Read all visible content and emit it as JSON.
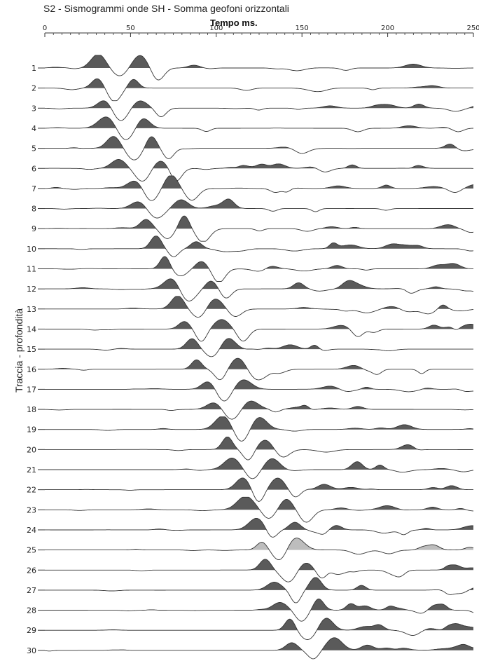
{
  "chart_data": {
    "type": "line",
    "title": "S2 - Sismogrammi onde SH - Somma geofoni orizzontali",
    "xlabel": "Tempo ms.",
    "ylabel": "Traccia - profondità",
    "xlim": [
      0,
      250
    ],
    "x_ticks": [
      0,
      50,
      100,
      150,
      200,
      250
    ],
    "x_tick_labels": [
      "0",
      "50",
      "100",
      "150",
      "200",
      "250"
    ],
    "trace_labels": [
      "1",
      "2",
      "3",
      "4",
      "5",
      "6",
      "7",
      "8",
      "9",
      "10",
      "11",
      "12",
      "13",
      "14",
      "15",
      "16",
      "17",
      "18",
      "19",
      "20",
      "21",
      "22",
      "23",
      "24",
      "25",
      "26",
      "27",
      "28",
      "29",
      "30"
    ],
    "first_arrival_ms": [
      26,
      24,
      27,
      30,
      35,
      39,
      46,
      50,
      55,
      59,
      64,
      68,
      72,
      76,
      80,
      84,
      88,
      92,
      96,
      100,
      104,
      108,
      112,
      116,
      120,
      124,
      128,
      132,
      136,
      140
    ],
    "positive_fill_color": "#5a5a5a",
    "highlight_trace": "25",
    "highlight_fill_color": "#bdbdbd",
    "grid": false,
    "legend": "none"
  }
}
